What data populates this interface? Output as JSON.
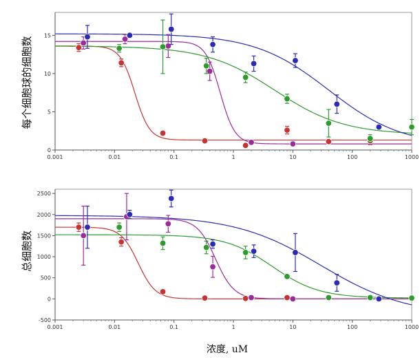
{
  "chart_data": [
    {
      "type": "scatter",
      "ylabel": "每个细胞球的细胞数",
      "xscale": "log",
      "xlim": [
        0.001,
        1000
      ],
      "ylim": [
        0,
        18
      ],
      "x_ticks": [
        0.001,
        0.01,
        0.1,
        1,
        10,
        100,
        1000
      ],
      "x_tick_labels": [
        "0.001",
        "0.01",
        "0.1",
        "1",
        "10",
        "100",
        "1000"
      ],
      "y_ticks": [
        0,
        5,
        10,
        15
      ],
      "y_tick_labels": [
        "0",
        "5",
        "10",
        "15"
      ],
      "grid": false,
      "series": [
        {
          "color": "#c83232",
          "points": [
            {
              "x": 0.0025,
              "y": 13.4,
              "err": 0.5
            },
            {
              "x": 0.013,
              "y": 11.4,
              "err": 0.5
            },
            {
              "x": 0.065,
              "y": 2.2,
              "err": 0.3
            },
            {
              "x": 0.33,
              "y": 1.2,
              "err": 0.3
            },
            {
              "x": 1.6,
              "y": 0.6,
              "err": 0.3
            },
            {
              "x": 8,
              "y": 2.6,
              "err": 0.5
            },
            {
              "x": 40,
              "y": 1.1,
              "err": 0.3
            },
            {
              "x": 200,
              "y": 1.2,
              "err": 0.5
            }
          ],
          "curve": {
            "top": 13.6,
            "bottom": 1.3,
            "ec50": 0.022,
            "hill": 3.5
          }
        },
        {
          "color": "#9b2a9b",
          "points": [
            {
              "x": 0.003,
              "y": 14.0,
              "err": 0.8
            },
            {
              "x": 0.015,
              "y": 14.5,
              "err": 0.6
            },
            {
              "x": 0.08,
              "y": 13.6,
              "err": 1.5
            },
            {
              "x": 0.4,
              "y": 10.3,
              "err": 1.2
            },
            {
              "x": 2.0,
              "y": 1.0,
              "err": 0.3
            },
            {
              "x": 10,
              "y": 0.8,
              "err": 0.3
            }
          ],
          "curve": {
            "top": 14.2,
            "bottom": 0.8,
            "ec50": 0.6,
            "hill": 3.5
          }
        },
        {
          "color": "#2d9b2d",
          "points": [
            {
              "x": 0.012,
              "y": 13.3,
              "err": 0.5
            },
            {
              "x": 0.065,
              "y": 13.5,
              "err": 3.5
            },
            {
              "x": 0.35,
              "y": 11.0,
              "err": 1.0
            },
            {
              "x": 1.6,
              "y": 9.5,
              "err": 0.7
            },
            {
              "x": 8,
              "y": 6.7,
              "err": 0.6
            },
            {
              "x": 40,
              "y": 3.5,
              "err": 1.8
            },
            {
              "x": 200,
              "y": 1.5,
              "err": 0.5
            },
            {
              "x": 1000,
              "y": 3.0,
              "err": 1.0
            }
          ],
          "curve": {
            "top": 13.6,
            "bottom": 2.0,
            "ec50": 5.0,
            "hill": 0.75
          }
        },
        {
          "color": "#2a2ab4",
          "points": [
            {
              "x": 0.0035,
              "y": 14.8,
              "err": 1.5
            },
            {
              "x": 0.018,
              "y": 15.0,
              "err": 0.3
            },
            {
              "x": 0.09,
              "y": 15.8,
              "err": 2.0
            },
            {
              "x": 0.45,
              "y": 13.8,
              "err": 1.0
            },
            {
              "x": 2.2,
              "y": 11.3,
              "err": 1.0
            },
            {
              "x": 11,
              "y": 11.7,
              "err": 0.9
            },
            {
              "x": 55,
              "y": 6.0,
              "err": 1.2
            },
            {
              "x": 280,
              "y": 3.0,
              "err": 0.2
            }
          ],
          "curve": {
            "top": 15.2,
            "bottom": 0.5,
            "ec50": 40,
            "hill": 0.7
          }
        }
      ]
    },
    {
      "type": "scatter",
      "ylabel": "总细胞数",
      "xlabel": "浓度, uM",
      "xscale": "log",
      "xlim": [
        0.001,
        1000
      ],
      "ylim": [
        -500,
        2600
      ],
      "x_ticks": [
        0.001,
        0.01,
        0.1,
        1,
        10,
        100,
        1000
      ],
      "x_tick_labels": [
        "0.001",
        "0.01",
        "0.1",
        "1",
        "10",
        "100",
        "1000"
      ],
      "y_ticks": [
        -500,
        0,
        500,
        1000,
        1500,
        2000,
        2500
      ],
      "y_tick_labels": [
        "-500",
        "0",
        "500",
        "1000",
        "1500",
        "2000",
        "2500"
      ],
      "grid": false,
      "series": [
        {
          "color": "#c83232",
          "points": [
            {
              "x": 0.0025,
              "y": 1700,
              "err": 100
            },
            {
              "x": 0.013,
              "y": 1350,
              "err": 100
            },
            {
              "x": 0.065,
              "y": 170,
              "err": 50
            },
            {
              "x": 0.33,
              "y": 20,
              "err": 30
            },
            {
              "x": 1.6,
              "y": 10,
              "err": 30
            },
            {
              "x": 8,
              "y": 30,
              "err": 30
            }
          ],
          "curve": {
            "top": 1700,
            "bottom": 0,
            "ec50": 0.025,
            "hill": 3.0
          }
        },
        {
          "color": "#9b2a9b",
          "points": [
            {
              "x": 0.003,
              "y": 1500,
              "err": 700
            },
            {
              "x": 0.016,
              "y": 1950,
              "err": 550
            },
            {
              "x": 0.08,
              "y": 1780,
              "err": 200
            },
            {
              "x": 0.45,
              "y": 760,
              "err": 250
            },
            {
              "x": 2.0,
              "y": 30,
              "err": 30
            },
            {
              "x": 10,
              "y": 0,
              "err": 30
            }
          ],
          "curve": {
            "top": 1900,
            "bottom": 0,
            "ec50": 0.5,
            "hill": 2.8
          }
        },
        {
          "color": "#2d9b2d",
          "points": [
            {
              "x": 0.012,
              "y": 1700,
              "err": 100
            },
            {
              "x": 0.065,
              "y": 1320,
              "err": 150
            },
            {
              "x": 0.35,
              "y": 1220,
              "err": 150
            },
            {
              "x": 1.6,
              "y": 1100,
              "err": 150
            },
            {
              "x": 8,
              "y": 530,
              "err": 50
            },
            {
              "x": 40,
              "y": 30,
              "err": 30
            },
            {
              "x": 200,
              "y": 30,
              "err": 30
            },
            {
              "x": 1000,
              "y": 20,
              "err": 20
            }
          ],
          "curve": {
            "top": 1520,
            "bottom": 20,
            "ec50": 4.5,
            "hill": 1.1
          }
        },
        {
          "color": "#2a2ab4",
          "points": [
            {
              "x": 0.0035,
              "y": 1700,
              "err": 500
            },
            {
              "x": 0.018,
              "y": 2000,
              "err": 100
            },
            {
              "x": 0.09,
              "y": 2380,
              "err": 200
            },
            {
              "x": 0.45,
              "y": 1300,
              "err": 100
            },
            {
              "x": 2.2,
              "y": 1130,
              "err": 150
            },
            {
              "x": 11,
              "y": 1100,
              "err": 450
            },
            {
              "x": 55,
              "y": 380,
              "err": 200
            },
            {
              "x": 280,
              "y": 0,
              "err": 30
            }
          ],
          "curve": {
            "top": 1980,
            "bottom": -400,
            "ec50": 30,
            "hill": 0.6
          }
        }
      ]
    }
  ]
}
